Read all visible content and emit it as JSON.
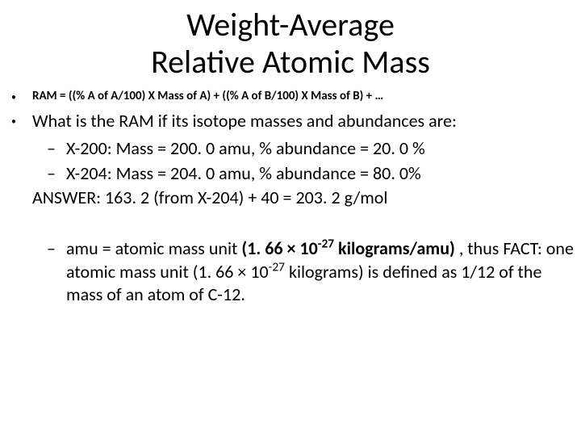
{
  "title_line1": "Weight-Average",
  "title_line2": "Relative Atomic Mass",
  "formula": "RAM = ((% A of A/100) X Mass of A) + ((% A of B/100) X Mass of B) + …",
  "question": "What is the RAM if its isotope masses and abundances are:",
  "iso1": "X-200:  Mass = 200. 0 amu, % abundance = 20. 0 %",
  "iso2": "X-204: Mass = 204. 0 amu, % abundance = 80. 0%",
  "answer": "ANSWER: 163. 2 (from X-204) + 40 = 203. 2 g/mol",
  "amu_pre": "amu = atomic mass unit ",
  "amu_bold_a": "(1. 66 × 10",
  "amu_bold_sup": "-27",
  "amu_bold_b": " kilograms/amu) ",
  "amu_mid": ", thus FACT:  one atomic mass unit (1. 66 × 10",
  "amu_sup2": "-27",
  "amu_tail": " kilograms) is defined as 1/12 of the mass of an atom of C-12."
}
